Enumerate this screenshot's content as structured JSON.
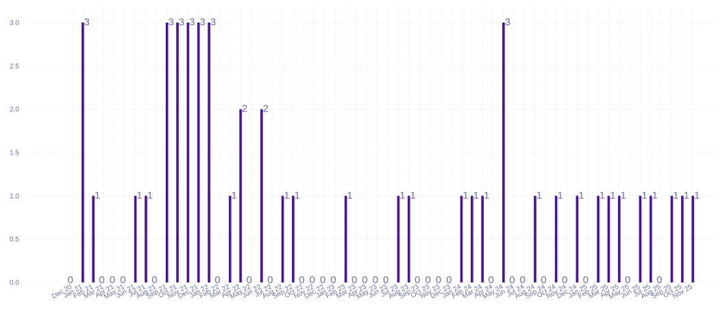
{
  "chart_data": {
    "type": "bar",
    "title": "",
    "xlabel": "",
    "ylabel": "",
    "ylim": [
      0,
      3.15
    ],
    "yticks": [
      "0.0",
      "0.5",
      "1.0",
      "1.5",
      "2.0",
      "2.5",
      "3.0"
    ],
    "ytick_values": [
      0,
      0.5,
      1,
      1.5,
      2,
      2.5,
      3
    ],
    "grid": true,
    "legend": "none",
    "bar_color": "#4b0fa5",
    "text_color": "#6b6fa8",
    "categories": [
      "Dec 20",
      "Jan 21",
      "Feb 21",
      "Mar 21",
      "Apr 21",
      "May 21",
      "Jun 21",
      "Jul 21",
      "Aug 21",
      "Sep 21",
      "Oct 21",
      "Nov 21",
      "Dec 21",
      "Jan 22",
      "Feb 22",
      "Mar 22",
      "Apr 22",
      "May 22",
      "Jun 22",
      "Jul 22",
      "Aug 22",
      "Sep 22",
      "Oct 22",
      "Nov 22",
      "Dec 22",
      "Jan 23",
      "Feb 23",
      "Mar 23",
      "Apr 23",
      "May 23",
      "Jun 23",
      "Jul 23",
      "Aug 23",
      "Sep 23",
      "Oct 23",
      "Nov 23",
      "Dec 23",
      "Jan 24",
      "Feb 24",
      "Mar 24",
      "Apr 24",
      "May 24",
      "Jun 24",
      "Jul 24",
      "Aug 24",
      "Sep 24",
      "Oct 24",
      "Nov 24",
      "Dec 24",
      "Jan 25",
      "Feb 25",
      "Mar 25",
      "Apr 25",
      "May 25",
      "Jun 25",
      "Jul 25",
      "Aug 25",
      "Sep 25",
      "Oct 25",
      "Nov 25"
    ],
    "values": [
      0,
      3,
      1,
      0,
      0,
      0,
      1,
      1,
      0,
      3,
      3,
      3,
      3,
      3,
      0,
      1,
      2,
      0,
      2,
      0,
      1,
      1,
      0,
      0,
      0,
      0,
      1,
      0,
      0,
      0,
      0,
      1,
      1,
      0,
      0,
      0,
      0,
      1,
      1,
      1,
      0,
      3,
      0,
      0,
      1,
      0,
      1,
      0,
      1,
      0,
      1,
      1,
      1,
      0,
      1,
      1,
      0,
      1,
      1,
      1
    ]
  }
}
